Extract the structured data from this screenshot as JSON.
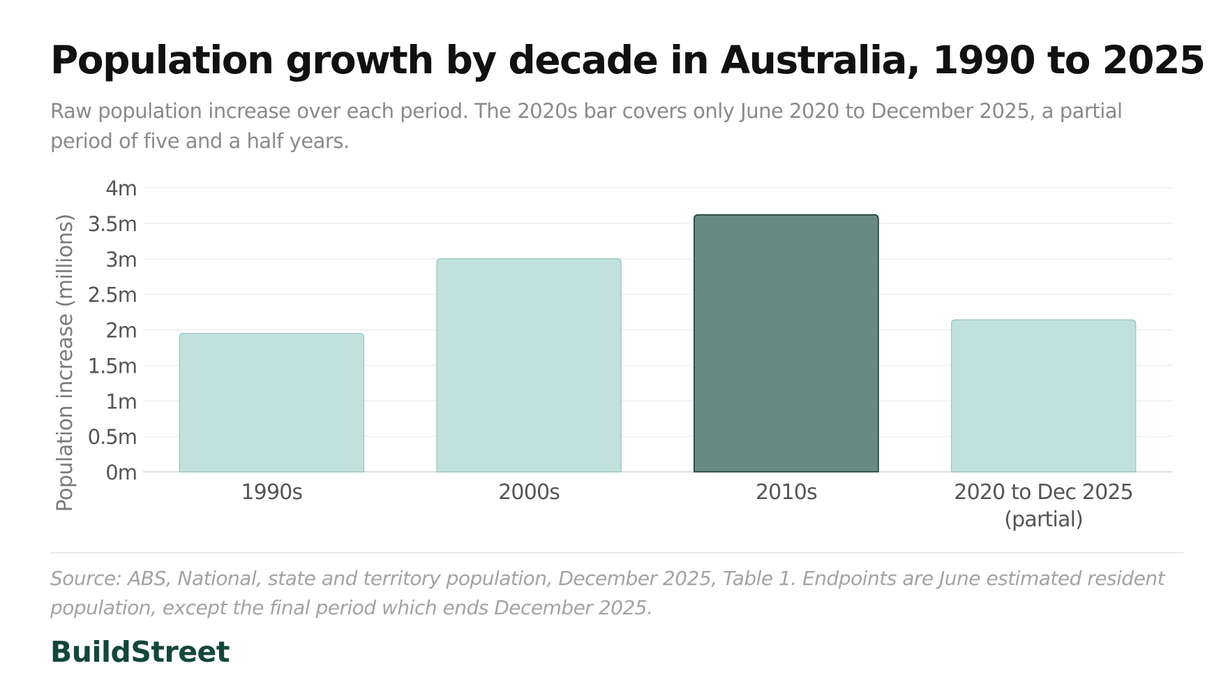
{
  "header": {
    "title": "Population growth by decade in Australia, 1990 to 2025",
    "subtitle": "Raw population increase over each period. The 2020s bar covers only June 2020 to December 2025, a partial period of five and a half years."
  },
  "chart_data": {
    "type": "bar",
    "title": "Population growth by decade in Australia, 1990 to 2025",
    "subtitle": "Raw population increase over each period. The 2020s bar covers only June 2020 to December 2025, a partial period of five and a half years.",
    "xlabel": "",
    "ylabel": "Population increase (millions)",
    "categories": [
      [
        "1990s"
      ],
      [
        "2000s"
      ],
      [
        "2010s"
      ],
      [
        "2020 to Dec 2025",
        "(partial)"
      ]
    ],
    "values": [
      1.95,
      3.0,
      3.62,
      2.14
    ],
    "highlight_index": 2,
    "ylim": [
      0,
      4
    ],
    "yticks": [
      0,
      0.5,
      1,
      1.5,
      2,
      2.5,
      3,
      3.5,
      4
    ],
    "ytick_labels": [
      "0m",
      "0.5m",
      "1m",
      "1.5m",
      "2m",
      "2.5m",
      "3m",
      "3.5m",
      "4m"
    ],
    "grid": true,
    "legend": "none"
  },
  "colors": {
    "bar_fill": "#c2e1dc",
    "bar_stroke": "#9ccac1",
    "highlight_fill": "#678b83",
    "highlight_stroke": "#1d3b34",
    "grid": "#eeeeee",
    "axis": "#dddddd",
    "tick_text": "#555555",
    "brand": "#14473c"
  },
  "footer": {
    "source": "Source: ABS, National, state and territory population, December 2025, Table 1. Endpoints are June estimated resident population, except the final period which ends December 2025.",
    "brand": "BuildStreet"
  }
}
